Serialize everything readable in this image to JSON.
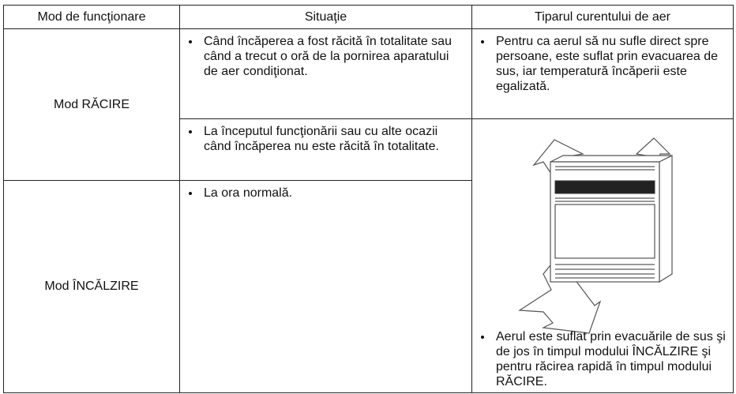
{
  "table": {
    "header": [
      "Mod de funcţionare",
      "Situaţie",
      "Tiparul curentului de aer"
    ],
    "modes": [
      "Mod RĂCIRE",
      "Mod ÎNCĂLZIRE"
    ],
    "situations": [
      "Când încăperea a fost răcită în totalitate sau când a trecut o oră de la pornirea aparatului de aer condiţionat.",
      "La începutul funcţionării sau cu alte ocazii când încăperea nu este răcită în totalitate.",
      "La ora normală."
    ],
    "patterns": [
      "Pentru ca aerul să nu sufle direct spre persoane, este suflat prin evacuarea de sus, iar temperatură încăperii este egalizată.",
      "Aerul este suflat prin evacuările de sus şi de jos în timpul modului ÎNCĂLZIRE şi pentru răcirea rapidă în timpul modului RĂCIRE."
    ]
  }
}
